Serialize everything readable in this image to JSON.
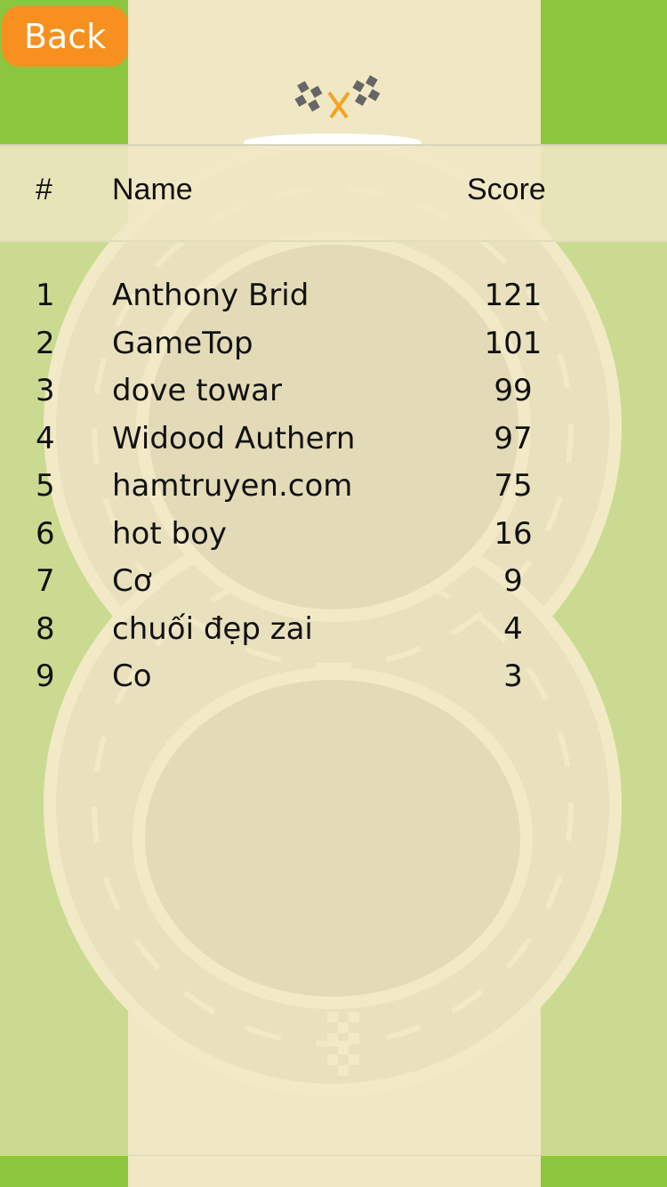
{
  "back_label": "Back",
  "icons": {
    "flags": "checkered-flags-icon"
  },
  "colors": {
    "accent": "#f7901e",
    "grass": "#8cc63f",
    "sand": "#f0e8c4"
  },
  "table": {
    "headers": {
      "rank": "#",
      "name": "Name",
      "score": "Score"
    },
    "rows": [
      {
        "rank": "1",
        "name": "Anthony Brid",
        "score": "121"
      },
      {
        "rank": "2",
        "name": "GameTop",
        "score": "101"
      },
      {
        "rank": "3",
        "name": "dove towar",
        "score": "99"
      },
      {
        "rank": "4",
        "name": "Widood Authern",
        "score": "97"
      },
      {
        "rank": "5",
        "name": "hamtruyen.com",
        "score": "75"
      },
      {
        "rank": "6",
        "name": "hot boy",
        "score": "16"
      },
      {
        "rank": "7",
        "name": "Cơ",
        "score": "9"
      },
      {
        "rank": "8",
        "name": "chuối đẹp zai",
        "score": "4"
      },
      {
        "rank": "9",
        "name": "Co",
        "score": "3"
      }
    ]
  }
}
